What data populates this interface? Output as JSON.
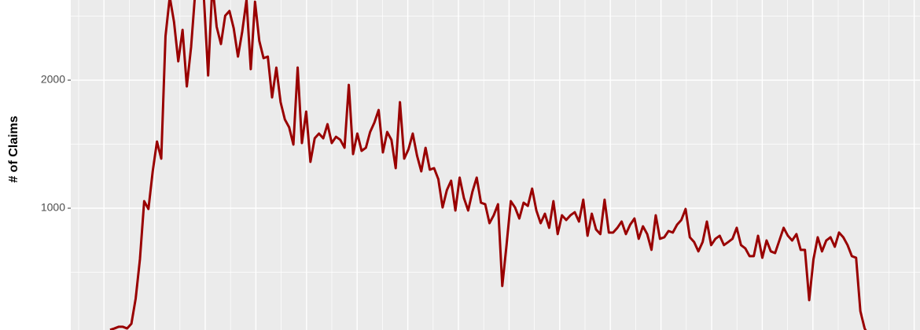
{
  "chart_data": {
    "type": "line",
    "y_label": "# of Claims",
    "categories": [
      null,
      null,
      null,
      null,
      null,
      null,
      null,
      null,
      null,
      null,
      null,
      null,
      null,
      null,
      null,
      null,
      null,
      null,
      null,
      null,
      null,
      null,
      null,
      null,
      null,
      null,
      null,
      null,
      null,
      null,
      null,
      null,
      null,
      null,
      null,
      null,
      null,
      null,
      null,
      null,
      null,
      null,
      null,
      null,
      null,
      null,
      null,
      null,
      null,
      null,
      null,
      null,
      null,
      null,
      null,
      null,
      null,
      null,
      null,
      null,
      null,
      null,
      null,
      null,
      null,
      null,
      null,
      null,
      null,
      null,
      null,
      null,
      null,
      null,
      null,
      null,
      null,
      null,
      null,
      null,
      null,
      null,
      null,
      null,
      null,
      null,
      null,
      null,
      null,
      null,
      null,
      null,
      null,
      null,
      null,
      null,
      null,
      null,
      null,
      null,
      null,
      null,
      null,
      null,
      null,
      null,
      null,
      null,
      null,
      null,
      null,
      null,
      null,
      null,
      null,
      null,
      null,
      null,
      null,
      null,
      null,
      null,
      null,
      null,
      null,
      null,
      null,
      null,
      null,
      null,
      null,
      null,
      null,
      null,
      null,
      null,
      null,
      null,
      null,
      null,
      null,
      null,
      null,
      null,
      null,
      null,
      null,
      null,
      null,
      null,
      null,
      null,
      null,
      null,
      null,
      null,
      null,
      null,
      null,
      null,
      null,
      null,
      null,
      null,
      null,
      null,
      null,
      null,
      null,
      null,
      null,
      null,
      null,
      null,
      null,
      null,
      null,
      null,
      null
    ],
    "series": [
      {
        "color": "#990000",
        "values": [
          50,
          61,
          74,
          74,
          61,
          98,
          294,
          601,
          1055,
          994,
          1288,
          1521,
          1387,
          2344,
          2650,
          2454,
          2147,
          2393,
          1951,
          2258,
          2700,
          2750,
          2650,
          2037,
          2750,
          2417,
          2282,
          2503,
          2540,
          2405,
          2184,
          2380,
          2626,
          2086,
          2613,
          2307,
          2172,
          2184,
          1865,
          2098,
          1828,
          1693,
          1632,
          1497,
          2098,
          1509,
          1755,
          1362,
          1546,
          1583,
          1546,
          1656,
          1509,
          1558,
          1534,
          1472,
          1963,
          1423,
          1583,
          1448,
          1472,
          1595,
          1669,
          1767,
          1436,
          1595,
          1534,
          1313,
          1828,
          1387,
          1460,
          1583,
          1411,
          1288,
          1472,
          1301,
          1313,
          1227,
          1006,
          1141,
          1215,
          982,
          1239,
          1080,
          982,
          1129,
          1239,
          1043,
          1031,
          883,
          945,
          1031,
          393,
          712,
          1055,
          1006,
          920,
          1043,
          1018,
          1153,
          982,
          883,
          957,
          847,
          1055,
          798,
          945,
          908,
          945,
          969,
          896,
          1067,
          785,
          957,
          834,
          798,
          1067,
          810,
          810,
          847,
          896,
          798,
          871,
          920,
          761,
          859,
          798,
          675,
          945,
          761,
          773,
          822,
          810,
          871,
          908,
          994,
          773,
          736,
          663,
          736,
          896,
          712,
          761,
          785,
          712,
          736,
          761,
          847,
          712,
          687,
          626,
          626,
          785,
          613,
          748,
          663,
          650,
          748,
          847,
          785,
          748,
          798,
          675,
          675,
          282,
          601,
          773,
          663,
          748,
          773,
          699,
          810,
          773,
          712,
          626,
          613,
          196,
          61,
          0
        ]
      }
    ],
    "ylim": [
      49,
      2626
    ],
    "yticks": [
      1000,
      2000
    ],
    "y_minor_ticks": [
      500,
      1500,
      2500
    ],
    "grid": true
  }
}
